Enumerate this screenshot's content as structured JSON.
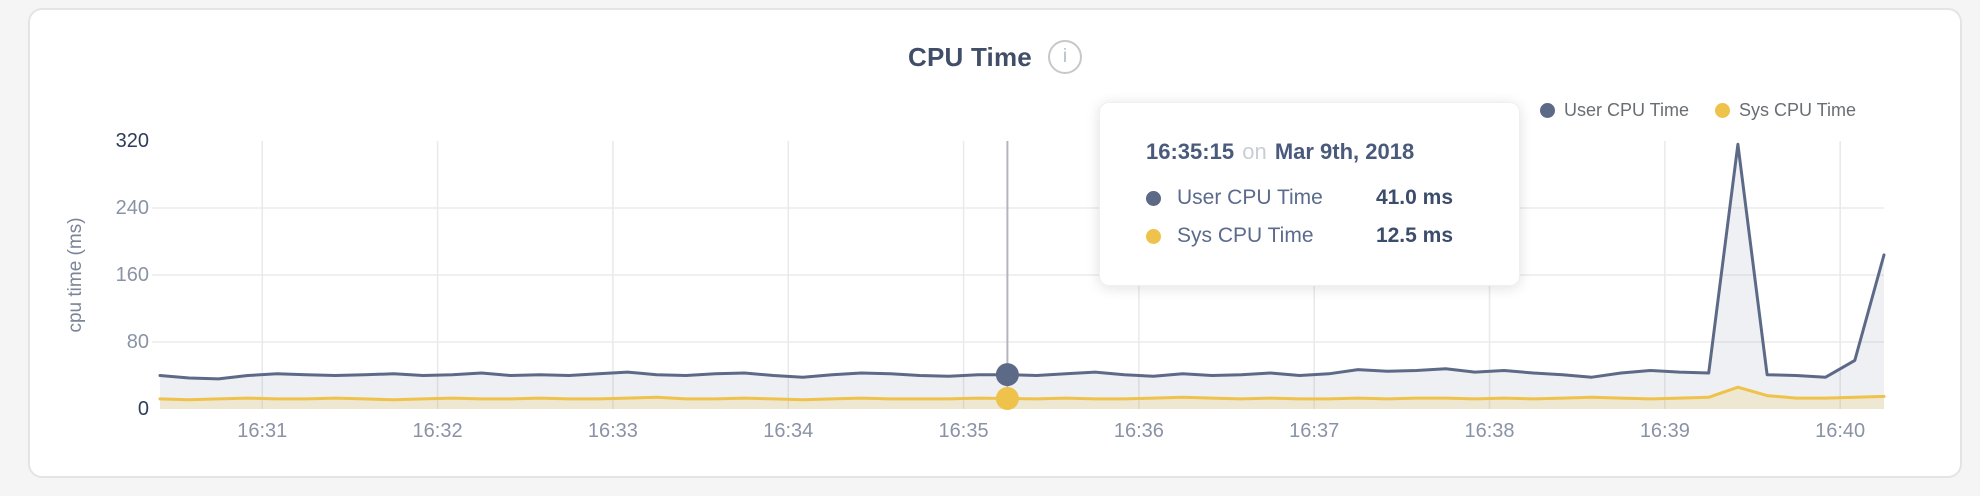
{
  "page": {
    "background": "#f5f5f5",
    "card_background": "#ffffff"
  },
  "header": {
    "title": "CPU Time",
    "info_icon_glyph": "i"
  },
  "legend": {
    "items": [
      {
        "label": "User CPU Time",
        "color": "#5d6a87"
      },
      {
        "label": "Sys CPU Time",
        "color": "#efc24b"
      }
    ]
  },
  "tooltip": {
    "time": "16:35:15",
    "connector": "on",
    "date": "Mar 9th, 2018",
    "rows": [
      {
        "label": "User CPU Time",
        "value": "41.0 ms",
        "color": "#5d6a87"
      },
      {
        "label": "Sys CPU Time",
        "value": "12.5 ms",
        "color": "#efc24b"
      }
    ]
  },
  "chart_data": {
    "type": "line",
    "title": "CPU Time",
    "xlabel": "",
    "ylabel": "cpu time (ms)",
    "ylim": [
      0,
      320
    ],
    "y_ticks": [
      {
        "value": 0,
        "strong": true
      },
      {
        "value": 80,
        "strong": false
      },
      {
        "value": 160,
        "strong": false
      },
      {
        "value": 240,
        "strong": false
      },
      {
        "value": 320,
        "strong": true
      }
    ],
    "grid": true,
    "legend_position": "top-right",
    "start_time": "16:30:25",
    "interval_s": 10,
    "x_ticks": [
      {
        "label": "16:31",
        "t": 35
      },
      {
        "label": "16:32",
        "t": 95
      },
      {
        "label": "16:33",
        "t": 155
      },
      {
        "label": "16:34",
        "t": 215
      },
      {
        "label": "16:35",
        "t": 275
      },
      {
        "label": "16:36",
        "t": 335
      },
      {
        "label": "16:37",
        "t": 395
      },
      {
        "label": "16:38",
        "t": 455
      },
      {
        "label": "16:39",
        "t": 515
      },
      {
        "label": "16:40",
        "t": 575
      }
    ],
    "series": [
      {
        "name": "User CPU Time",
        "color": "#5d6a87",
        "fill": "rgba(93,106,135,0.10)",
        "values": [
          40,
          37,
          36,
          40,
          42,
          41,
          40,
          41,
          42,
          40,
          41,
          43,
          40,
          41,
          40,
          42,
          44,
          41,
          40,
          42,
          43,
          40,
          38,
          41,
          43,
          42,
          40,
          39,
          41,
          41,
          40,
          42,
          44,
          41,
          39,
          42,
          40,
          41,
          43,
          40,
          42,
          47,
          45,
          46,
          48,
          44,
          46,
          43,
          41,
          38,
          43,
          46,
          44,
          43,
          316,
          41,
          40,
          38,
          58,
          184
        ]
      },
      {
        "name": "Sys CPU Time",
        "color": "#efc24b",
        "fill": "rgba(239,194,75,0.20)",
        "values": [
          12,
          11,
          12,
          13,
          12,
          12,
          13,
          12,
          11,
          12,
          13,
          12,
          12,
          13,
          12,
          12,
          13,
          14,
          12,
          12,
          13,
          12,
          11,
          12,
          13,
          12,
          12,
          12,
          13,
          12.5,
          12,
          13,
          12,
          12,
          13,
          14,
          13,
          12,
          13,
          12,
          12,
          13,
          12,
          13,
          13,
          12,
          13,
          12,
          13,
          14,
          13,
          12,
          13,
          14,
          26,
          16,
          13,
          13,
          14,
          15
        ]
      }
    ],
    "highlight": {
      "index": 29,
      "time": "16:35:15",
      "date": "Mar 9th, 2018",
      "user_ms": 41.0,
      "sys_ms": 12.5
    }
  }
}
